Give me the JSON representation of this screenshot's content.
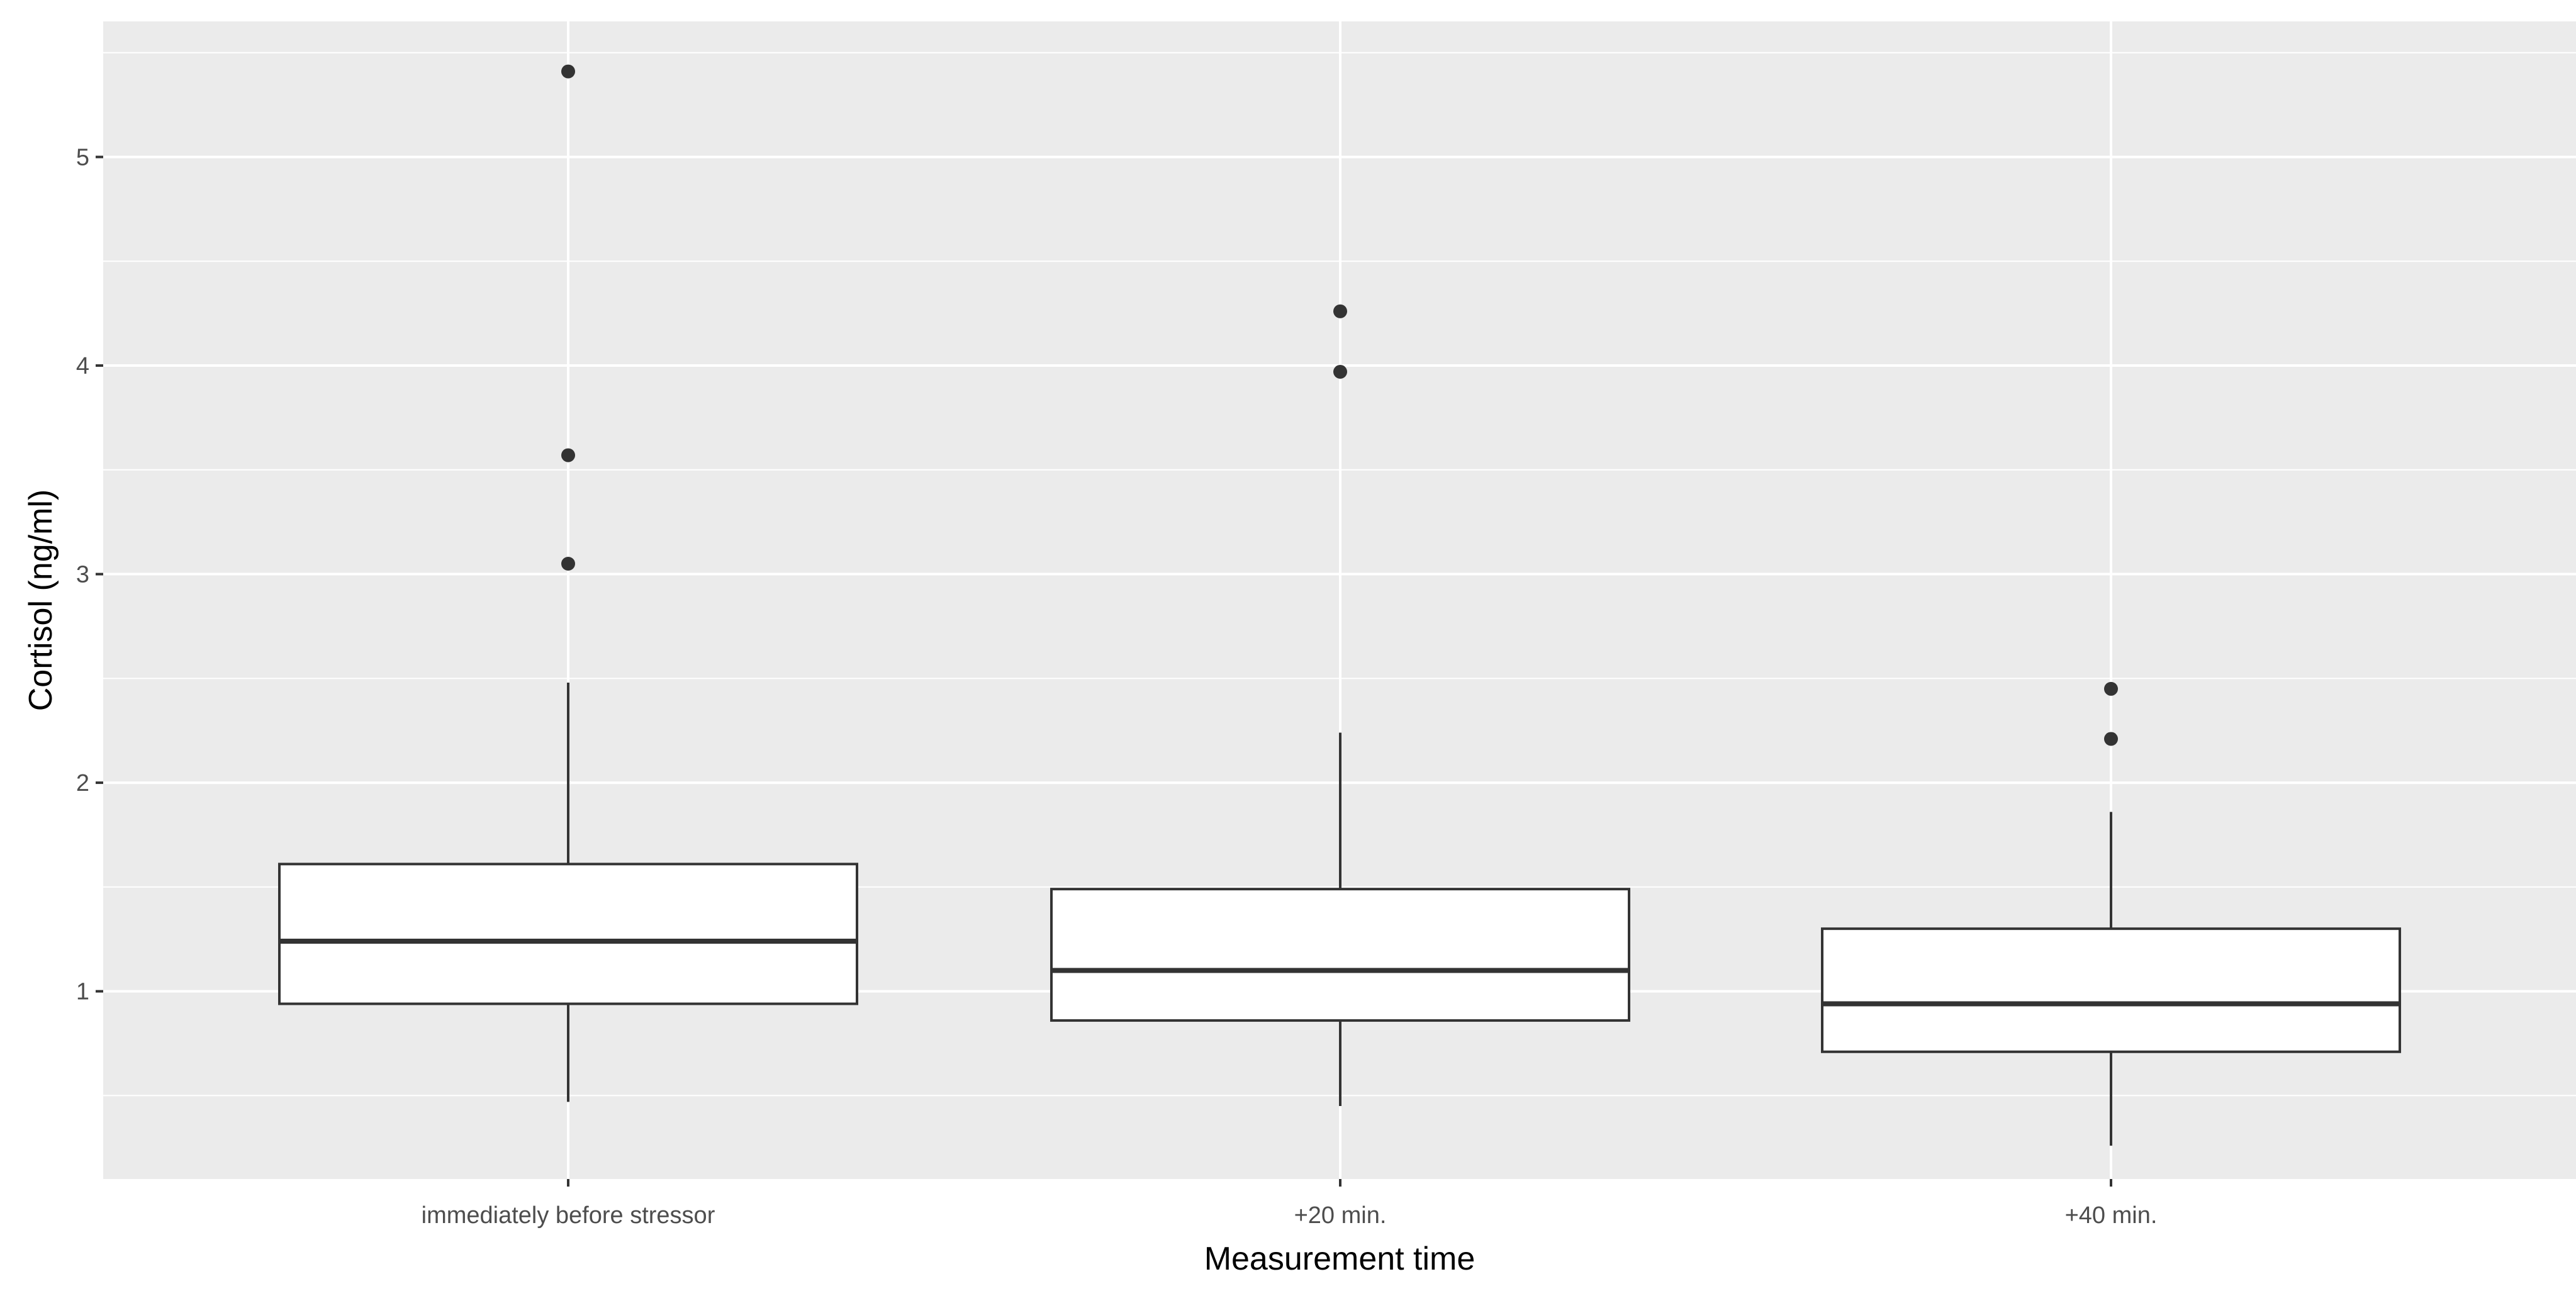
{
  "chart_data": {
    "type": "box",
    "title": "",
    "xlabel": "Measurement time",
    "ylabel": "Cortisol (ng/ml)",
    "ylim": [
      0.1,
      5.65
    ],
    "yticks": [
      1,
      2,
      3,
      4,
      5
    ],
    "grid": true,
    "colors": {
      "panel": "#ebebeb",
      "grid": "#ffffff",
      "box_fill": "#ffffff",
      "box_stroke": "#333333",
      "outlier": "#333333"
    },
    "categories": [
      "immediately before stressor",
      "+20 min.",
      "+40 min."
    ],
    "boxes": [
      {
        "category": "immediately before stressor",
        "whisker_low": 0.47,
        "q1": 0.94,
        "median": 1.24,
        "q3": 1.61,
        "whisker_high": 2.48,
        "outliers": [
          3.05,
          3.57,
          5.41
        ]
      },
      {
        "category": "+20 min.",
        "whisker_low": 0.45,
        "q1": 0.86,
        "median": 1.1,
        "q3": 1.49,
        "whisker_high": 2.24,
        "outliers": [
          3.97,
          4.26
        ]
      },
      {
        "category": "+40 min.",
        "whisker_low": 0.26,
        "q1": 0.71,
        "median": 0.94,
        "q3": 1.3,
        "whisker_high": 1.86,
        "outliers": [
          2.21,
          2.45
        ]
      }
    ]
  }
}
